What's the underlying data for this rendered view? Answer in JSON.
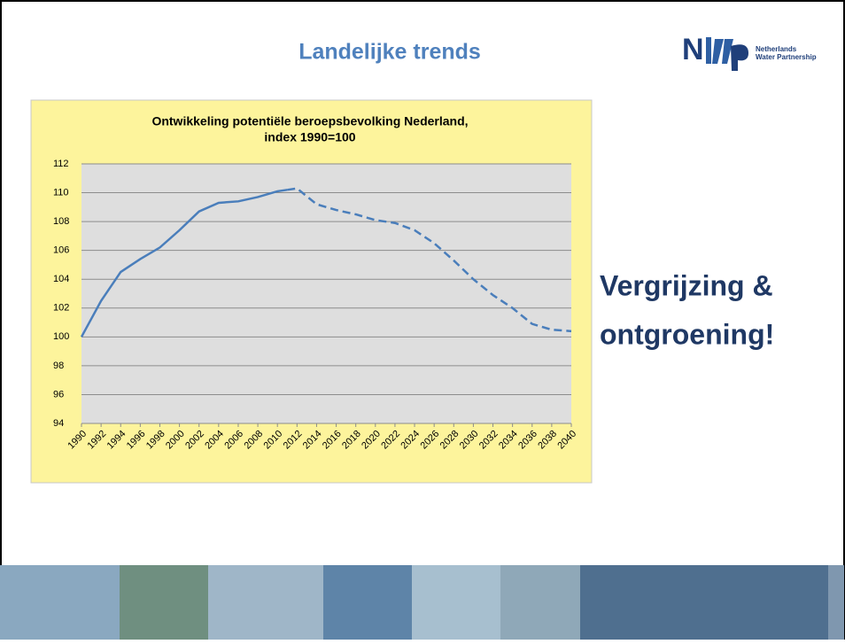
{
  "slide_title": "Landelijke trends",
  "logo": {
    "line1": "Netherlands",
    "line2": "Water Partnership"
  },
  "side_text": [
    "Vergrijzing &",
    "ontgroening!"
  ],
  "chart_data": {
    "type": "line",
    "title": [
      "Ontwikkeling potentiële beroepsbevolking Nederland,",
      "index 1990=100"
    ],
    "xlim": [
      1990,
      2040
    ],
    "xticks": [
      1990,
      1992,
      1994,
      1996,
      1998,
      2000,
      2002,
      2004,
      2006,
      2008,
      2010,
      2012,
      2014,
      2016,
      2018,
      2020,
      2022,
      2024,
      2026,
      2028,
      2030,
      2032,
      2034,
      2036,
      2038,
      2040
    ],
    "ylim": [
      94,
      112
    ],
    "yticks": [
      94,
      96,
      98,
      100,
      102,
      104,
      106,
      108,
      110,
      112
    ],
    "grid": true,
    "series": [
      {
        "color": "#4a7ebb",
        "dash": false,
        "x": [
          1990,
          1992,
          1994,
          1996,
          1998,
          2000,
          2002,
          2004,
          2006,
          2008,
          2010,
          2011
        ],
        "values": [
          100,
          102.5,
          104.5,
          105.4,
          106.2,
          107.4,
          108.7,
          109.3,
          109.4,
          109.7,
          110.1,
          110.2
        ]
      },
      {
        "color": "#4a7ebb",
        "dash": true,
        "x": [
          2011,
          2012,
          2014,
          2016,
          2018,
          2020,
          2022,
          2024,
          2026,
          2028,
          2030,
          2032,
          2034,
          2036,
          2038,
          2040
        ],
        "values": [
          110.2,
          110.3,
          109.2,
          108.8,
          108.5,
          108.1,
          107.9,
          107.4,
          106.5,
          105.3,
          104.0,
          102.9,
          102.0,
          100.9,
          100.5,
          100.4
        ]
      }
    ]
  }
}
